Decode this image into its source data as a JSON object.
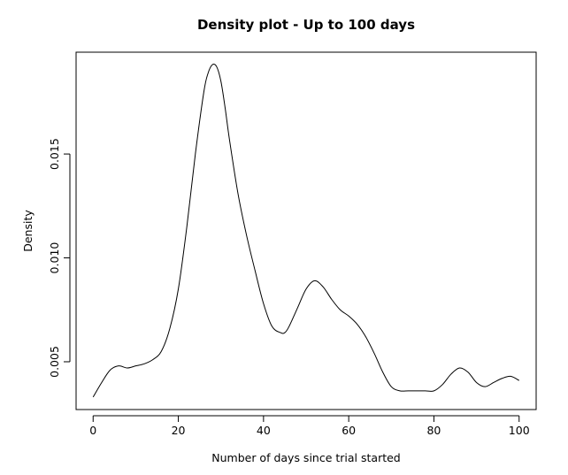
{
  "chart_data": {
    "type": "line",
    "title": "Density plot - Up to 100 days",
    "xlabel": "Number of days since trial started",
    "ylabel": "Density",
    "xlim": [
      -4,
      104
    ],
    "ylim": [
      0.0027,
      0.0199
    ],
    "x_ticks": [
      0,
      20,
      40,
      60,
      80,
      100
    ],
    "x_tick_labels": [
      "0",
      "20",
      "40",
      "60",
      "80",
      "100"
    ],
    "y_ticks": [
      0.005,
      0.01,
      0.015
    ],
    "y_tick_labels": [
      "0.005",
      "0.010",
      "0.015"
    ],
    "grid": false,
    "legend": "none",
    "series": [
      {
        "name": "density",
        "x": [
          0,
          2,
          4,
          6,
          8,
          10,
          12,
          14,
          16,
          18,
          20,
          22,
          24,
          26,
          27,
          28,
          29,
          30,
          31,
          32,
          34,
          36,
          38,
          40,
          42,
          44,
          45,
          46,
          48,
          50,
          52,
          54,
          56,
          58,
          60,
          62,
          64,
          66,
          68,
          70,
          72,
          74,
          76,
          78,
          80,
          82,
          84,
          86,
          88,
          90,
          92,
          94,
          96,
          98,
          100
        ],
        "y": [
          0.0033,
          0.004,
          0.0046,
          0.0048,
          0.0047,
          0.0048,
          0.0049,
          0.0051,
          0.0055,
          0.0066,
          0.0085,
          0.0115,
          0.015,
          0.018,
          0.0189,
          0.0193,
          0.0192,
          0.0185,
          0.0172,
          0.0157,
          0.0131,
          0.0111,
          0.0094,
          0.0078,
          0.0067,
          0.0064,
          0.0064,
          0.0067,
          0.0076,
          0.0085,
          0.0089,
          0.0086,
          0.008,
          0.0075,
          0.0072,
          0.0068,
          0.0062,
          0.0054,
          0.0045,
          0.0038,
          0.0036,
          0.0036,
          0.0036,
          0.0036,
          0.0036,
          0.0039,
          0.0044,
          0.0047,
          0.0045,
          0.004,
          0.0038,
          0.004,
          0.0042,
          0.0043,
          0.0041
        ]
      }
    ]
  }
}
